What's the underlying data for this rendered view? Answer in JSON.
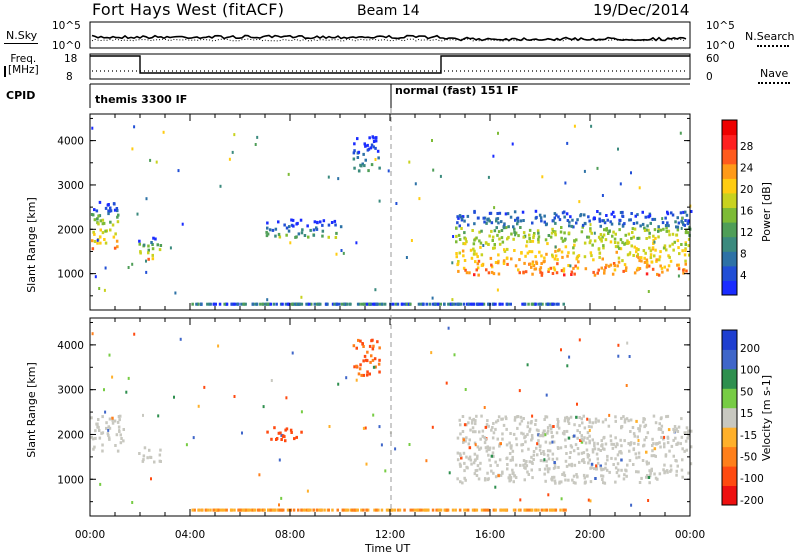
{
  "header": {
    "station": "Fort Hays West (fitACF)",
    "beam": "Beam 14",
    "date": "19/Dec/2014"
  },
  "strips": {
    "nsky": {
      "label": "N.Sky",
      "ticks": [
        "10^5",
        "10^0"
      ]
    },
    "nsearch": {
      "label": "N.Search",
      "ticks": [
        "10^5",
        "10^0"
      ]
    },
    "freq": {
      "label_line1": "Freq.",
      "label_line2": "[MHz]",
      "ticks": [
        "18",
        "8"
      ]
    },
    "nave": {
      "label": "Nave",
      "ticks": [
        "60",
        "0"
      ]
    },
    "cpid": {
      "label": "CPID",
      "mode1": "themis 3300 IF",
      "mode2": "normal (fast) 151 IF"
    }
  },
  "xaxis": {
    "label": "Time UT",
    "ticks": [
      "00:00",
      "04:00",
      "08:00",
      "12:00",
      "16:00",
      "20:00",
      "00:00"
    ]
  },
  "chart_data": [
    {
      "type": "heatmap",
      "panel": "power",
      "ylabel": "Slant Range [km]",
      "yticks": [
        "4000",
        "3000",
        "2000",
        "1000"
      ],
      "ylim": [
        180,
        4600
      ],
      "xlim_hours": [
        0,
        24
      ],
      "colorbar": {
        "label": "Power [dB]",
        "ticks": [
          "28",
          "24",
          "20",
          "16",
          "12",
          "8",
          "4"
        ],
        "range": [
          0,
          30
        ],
        "colors": [
          "#1a2cff",
          "#214fd6",
          "#2d72a6",
          "#3b8a7e",
          "#4f9e58",
          "#7dbb36",
          "#c8d21f",
          "#ffcc11",
          "#ff9a18",
          "#ff5a1d",
          "#ff2020",
          "#ee0000"
        ]
      },
      "regions": [
        {
          "t0": 0.0,
          "t1": 1.2,
          "r0": 1550,
          "r1": 2600,
          "value": 14
        },
        {
          "t0": 1.9,
          "t1": 2.8,
          "r0": 1300,
          "r1": 1800,
          "value": 14
        },
        {
          "t0": 7.0,
          "t1": 10.0,
          "r0": 1800,
          "r1": 2200,
          "value": 6
        },
        {
          "t0": 10.5,
          "t1": 11.6,
          "r0": 3300,
          "r1": 4100,
          "value": 5
        },
        {
          "t0": 14.6,
          "t1": 24.0,
          "r0": 950,
          "r1": 2400,
          "value": 16
        }
      ]
    },
    {
      "type": "heatmap",
      "panel": "velocity",
      "ylabel": "Slant Range [km]",
      "yticks": [
        "4000",
        "3000",
        "2000",
        "1000"
      ],
      "ylim": [
        180,
        4600
      ],
      "xlim_hours": [
        0,
        24
      ],
      "colorbar": {
        "label": "Velocity [m s-1]",
        "ticks": [
          "200",
          "100",
          "50",
          "15",
          "-15",
          "-50",
          "-100",
          "-200"
        ],
        "colors": [
          "#1f3fd0",
          "#3f66c9",
          "#2e8f4e",
          "#77cc44",
          "#c8c8c0",
          "#ffb02a",
          "#ff7f1a",
          "#ff4a10",
          "#ee1010"
        ]
      },
      "regions": [
        {
          "t0": 0.0,
          "t1": 1.3,
          "r0": 1600,
          "r1": 2400,
          "value": 0
        },
        {
          "t0": 1.9,
          "t1": 2.8,
          "r0": 1350,
          "r1": 1700,
          "value": 0
        },
        {
          "t0": 7.0,
          "t1": 8.5,
          "r0": 1850,
          "r1": 2150,
          "value": -150
        },
        {
          "t0": 10.5,
          "t1": 11.6,
          "r0": 3300,
          "r1": 4100,
          "value": -100
        },
        {
          "t0": 14.6,
          "t1": 24.0,
          "r0": 900,
          "r1": 2400,
          "value": 0
        }
      ]
    }
  ]
}
